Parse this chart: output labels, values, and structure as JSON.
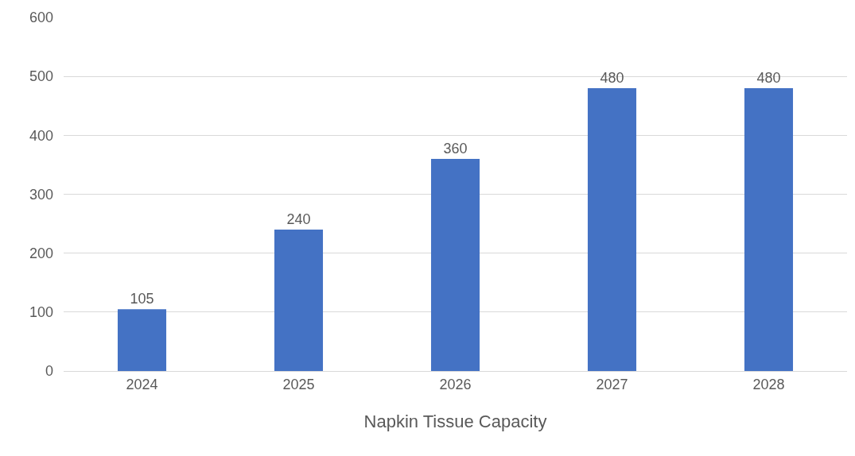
{
  "chart_data": {
    "type": "bar",
    "xlabel": "Napkin Tissue Capacity",
    "categories": [
      "2024",
      "2025",
      "2026",
      "2027",
      "2028"
    ],
    "values": [
      105,
      240,
      360,
      480,
      480
    ],
    "color": "#4472c4",
    "ylim": [
      0,
      600
    ],
    "yticks": [
      0,
      100,
      200,
      300,
      400,
      500,
      600
    ],
    "grid": "y",
    "data_labels": true,
    "legend": false
  }
}
